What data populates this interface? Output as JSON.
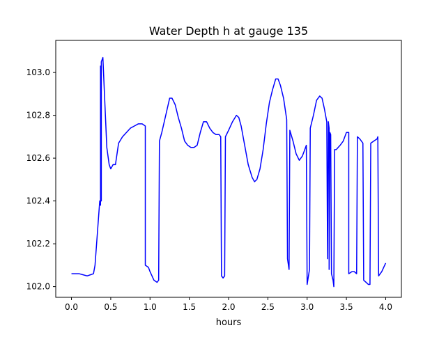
{
  "chart_data": {
    "type": "line",
    "title": "Water Depth h at gauge 135",
    "xlabel": "hours",
    "ylabel": "",
    "xlim": [
      -0.2,
      4.2
    ],
    "ylim": [
      101.95,
      103.15
    ],
    "x_ticks": [
      0.0,
      0.5,
      1.0,
      1.5,
      2.0,
      2.5,
      3.0,
      3.5,
      4.0
    ],
    "x_tick_labels": [
      "0.0",
      "0.5",
      "1.0",
      "1.5",
      "2.0",
      "2.5",
      "3.0",
      "3.5",
      "4.0"
    ],
    "y_ticks": [
      102.0,
      102.2,
      102.4,
      102.6,
      102.8,
      103.0
    ],
    "y_tick_labels": [
      "102.0",
      "102.2",
      "102.4",
      "102.6",
      "102.8",
      "103.0"
    ],
    "grid": false,
    "series": [
      {
        "color": "#0000ff",
        "points": [
          [
            0.0,
            102.06
          ],
          [
            0.1,
            102.06
          ],
          [
            0.2,
            102.05
          ],
          [
            0.28,
            102.06
          ],
          [
            0.3,
            102.1
          ],
          [
            0.33,
            102.25
          ],
          [
            0.36,
            102.4
          ],
          [
            0.37,
            102.38
          ],
          [
            0.37,
            103.03
          ],
          [
            0.38,
            102.4
          ],
          [
            0.38,
            103.05
          ],
          [
            0.4,
            103.07
          ],
          [
            0.42,
            102.9
          ],
          [
            0.45,
            102.65
          ],
          [
            0.48,
            102.57
          ],
          [
            0.5,
            102.55
          ],
          [
            0.53,
            102.57
          ],
          [
            0.56,
            102.57
          ],
          [
            0.6,
            102.67
          ],
          [
            0.65,
            102.7
          ],
          [
            0.7,
            102.72
          ],
          [
            0.75,
            102.74
          ],
          [
            0.8,
            102.75
          ],
          [
            0.85,
            102.76
          ],
          [
            0.9,
            102.76
          ],
          [
            0.94,
            102.75
          ],
          [
            0.94,
            102.1
          ],
          [
            0.98,
            102.09
          ],
          [
            1.0,
            102.07
          ],
          [
            1.05,
            102.03
          ],
          [
            1.09,
            102.02
          ],
          [
            1.11,
            102.03
          ],
          [
            1.12,
            102.68
          ],
          [
            1.15,
            102.72
          ],
          [
            1.2,
            102.8
          ],
          [
            1.25,
            102.88
          ],
          [
            1.28,
            102.88
          ],
          [
            1.32,
            102.85
          ],
          [
            1.36,
            102.79
          ],
          [
            1.4,
            102.74
          ],
          [
            1.44,
            102.68
          ],
          [
            1.48,
            102.66
          ],
          [
            1.52,
            102.65
          ],
          [
            1.56,
            102.65
          ],
          [
            1.6,
            102.66
          ],
          [
            1.64,
            102.72
          ],
          [
            1.68,
            102.77
          ],
          [
            1.72,
            102.77
          ],
          [
            1.76,
            102.74
          ],
          [
            1.8,
            102.72
          ],
          [
            1.84,
            102.71
          ],
          [
            1.88,
            102.71
          ],
          [
            1.9,
            102.7
          ],
          [
            1.91,
            102.05
          ],
          [
            1.93,
            102.04
          ],
          [
            1.95,
            102.05
          ],
          [
            1.96,
            102.7
          ],
          [
            2.0,
            102.73
          ],
          [
            2.05,
            102.77
          ],
          [
            2.1,
            102.8
          ],
          [
            2.13,
            102.79
          ],
          [
            2.16,
            102.75
          ],
          [
            2.2,
            102.67
          ],
          [
            2.25,
            102.57
          ],
          [
            2.3,
            102.51
          ],
          [
            2.33,
            102.49
          ],
          [
            2.36,
            102.5
          ],
          [
            2.4,
            102.55
          ],
          [
            2.44,
            102.64
          ],
          [
            2.48,
            102.76
          ],
          [
            2.52,
            102.86
          ],
          [
            2.56,
            102.92
          ],
          [
            2.6,
            102.97
          ],
          [
            2.63,
            102.97
          ],
          [
            2.66,
            102.94
          ],
          [
            2.7,
            102.88
          ],
          [
            2.74,
            102.78
          ],
          [
            2.75,
            102.13
          ],
          [
            2.77,
            102.08
          ],
          [
            2.78,
            102.73
          ],
          [
            2.82,
            102.68
          ],
          [
            2.86,
            102.62
          ],
          [
            2.9,
            102.59
          ],
          [
            2.94,
            102.61
          ],
          [
            2.98,
            102.65
          ],
          [
            2.99,
            102.66
          ],
          [
            3.0,
            102.01
          ],
          [
            3.03,
            102.08
          ],
          [
            3.04,
            102.74
          ],
          [
            3.08,
            102.8
          ],
          [
            3.12,
            102.87
          ],
          [
            3.16,
            102.89
          ],
          [
            3.19,
            102.88
          ],
          [
            3.22,
            102.83
          ],
          [
            3.25,
            102.77
          ],
          [
            3.26,
            102.13
          ],
          [
            3.27,
            102.77
          ],
          [
            3.28,
            102.74
          ],
          [
            3.28,
            102.08
          ],
          [
            3.29,
            102.72
          ],
          [
            3.3,
            102.71
          ],
          [
            3.31,
            102.06
          ],
          [
            3.33,
            102.03
          ],
          [
            3.34,
            102.0
          ],
          [
            3.35,
            102.64
          ],
          [
            3.37,
            102.64
          ],
          [
            3.42,
            102.66
          ],
          [
            3.46,
            102.68
          ],
          [
            3.5,
            102.72
          ],
          [
            3.53,
            102.72
          ],
          [
            3.53,
            102.06
          ],
          [
            3.57,
            102.07
          ],
          [
            3.6,
            102.07
          ],
          [
            3.63,
            102.06
          ],
          [
            3.64,
            102.7
          ],
          [
            3.67,
            102.69
          ],
          [
            3.71,
            102.67
          ],
          [
            3.72,
            102.03
          ],
          [
            3.75,
            102.02
          ],
          [
            3.78,
            102.01
          ],
          [
            3.8,
            102.01
          ],
          [
            3.81,
            102.67
          ],
          [
            3.85,
            102.68
          ],
          [
            3.89,
            102.69
          ],
          [
            3.9,
            102.7
          ],
          [
            3.91,
            102.05
          ],
          [
            3.95,
            102.07
          ],
          [
            4.0,
            102.11
          ]
        ]
      }
    ]
  }
}
